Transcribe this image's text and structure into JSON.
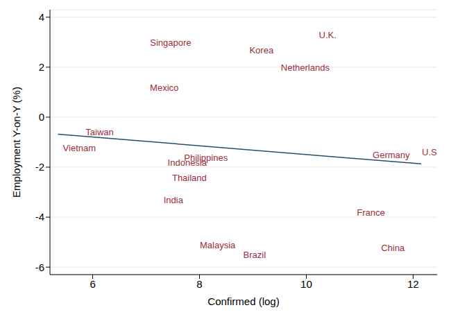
{
  "chart_data": {
    "type": "scatter",
    "x_label": "Confirmed (log)",
    "y_label": "Employment Y-on-Y (%)",
    "xlim": [
      5.2,
      12.45
    ],
    "xticks": [
      6,
      8,
      10,
      12
    ],
    "ylim": [
      -6.3,
      4.3
    ],
    "yticks": [
      -6,
      -4,
      -2,
      0,
      2,
      4
    ],
    "grid": true,
    "series": [
      {
        "type": "scatter",
        "marker": "label",
        "color": "#9b2d37",
        "labels": [
          "Singapore",
          "Korea",
          "U.K.",
          "Netherlands",
          "Mexico",
          "Taiwan",
          "Vietnam",
          "Germany",
          "U.S.",
          "Philippines",
          "Indonesia",
          "Thailand",
          "India",
          "France",
          "Malaysia",
          "Brazil",
          "China"
        ],
        "x": [
          7.46,
          9.16,
          10.4,
          9.98,
          7.34,
          6.13,
          5.75,
          11.59,
          12.33,
          8.12,
          7.77,
          7.81,
          7.51,
          11.21,
          8.34,
          9.03,
          11.62
        ],
        "values": [
          2.98,
          2.67,
          3.29,
          1.99,
          1.18,
          -0.6,
          -1.23,
          -1.52,
          -1.41,
          -1.62,
          -1.83,
          -2.43,
          -3.32,
          -3.82,
          -5.12,
          -5.52,
          -5.23
        ]
      },
      {
        "type": "line",
        "color": "#1f4e6e",
        "x": [
          5.35,
          12.15
        ],
        "values": [
          -0.68,
          -1.87
        ]
      }
    ]
  }
}
